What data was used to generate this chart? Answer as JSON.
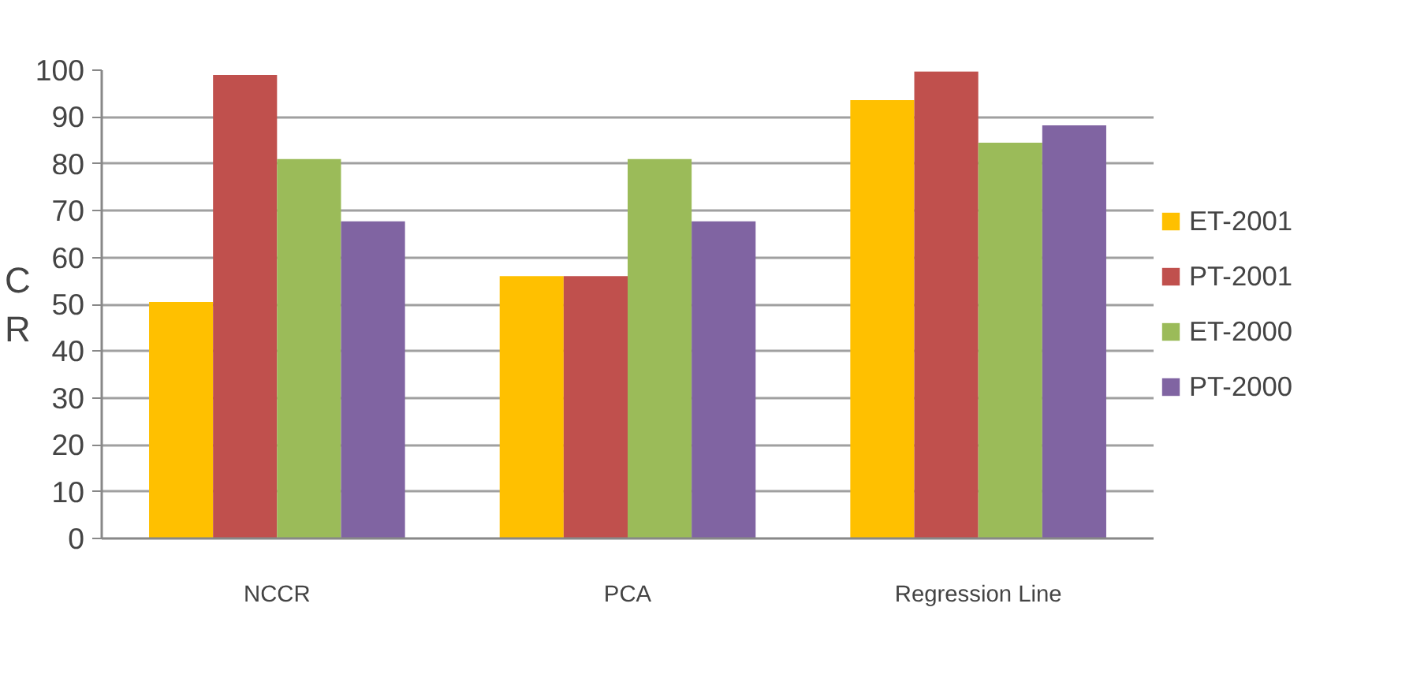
{
  "chart_data": {
    "type": "bar",
    "ylabel": "CR",
    "categories": [
      "NCCR",
      "PCA",
      "Regression Line"
    ],
    "series": [
      {
        "name": "ET-2001",
        "color": "#ffc000",
        "values": [
          50.5,
          56,
          93.6
        ]
      },
      {
        "name": "PT-2001",
        "color": "#c0504d",
        "values": [
          99,
          56,
          99.7
        ]
      },
      {
        "name": "ET-2000",
        "color": "#9bbb59",
        "values": [
          81,
          81,
          84.5
        ]
      },
      {
        "name": "PT-2000",
        "color": "#8064a2",
        "values": [
          67.7,
          67.7,
          88.2
        ]
      }
    ],
    "ylim": [
      0,
      100
    ],
    "yticks": [
      0,
      10,
      20,
      30,
      40,
      50,
      60,
      70,
      80,
      90,
      100
    ],
    "grid": "y",
    "legend": "right"
  }
}
